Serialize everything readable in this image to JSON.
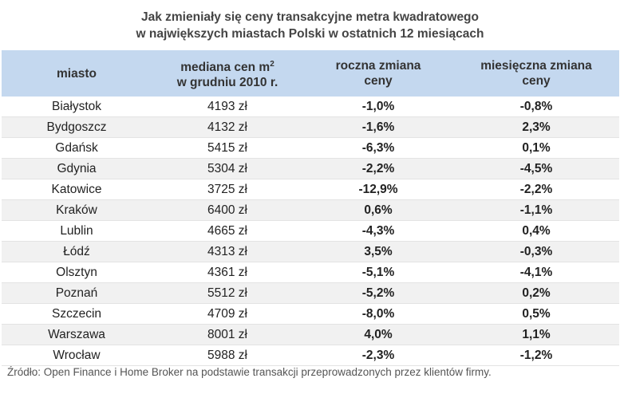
{
  "title": {
    "line1": "Jak zmieniały się ceny transakcyjne metra kwadratowego",
    "line2": "w największych miastach Polski w ostatnich 12 miesiącach"
  },
  "headers": {
    "city": "miasto",
    "median_line1": "mediana cen m",
    "median_sup": "2",
    "median_line2": "w grudniu 2010 r.",
    "annual_line1": "roczna zmiana",
    "annual_line2": "ceny",
    "monthly_line1": "miesięczna zmiana",
    "monthly_line2": "ceny"
  },
  "chart_data": {
    "type": "table",
    "columns": [
      "miasto",
      "mediana cen m2 w grudniu 2010 r.",
      "roczna zmiana ceny",
      "miesięczna zmiana ceny"
    ],
    "rows": [
      {
        "city": "Białystok",
        "median": "4193 zł",
        "annual": "-1,0%",
        "monthly": "-0,8%"
      },
      {
        "city": "Bydgoszcz",
        "median": "4132 zł",
        "annual": "-1,6%",
        "monthly": "2,3%"
      },
      {
        "city": "Gdańsk",
        "median": "5415 zł",
        "annual": "-6,3%",
        "monthly": "0,1%"
      },
      {
        "city": "Gdynia",
        "median": "5304 zł",
        "annual": "-2,2%",
        "monthly": "-4,5%"
      },
      {
        "city": "Katowice",
        "median": "3725 zł",
        "annual": "-12,9%",
        "monthly": "-2,2%"
      },
      {
        "city": "Kraków",
        "median": "6400 zł",
        "annual": "0,6%",
        "monthly": "-1,1%"
      },
      {
        "city": "Lublin",
        "median": "4665 zł",
        "annual": "-4,3%",
        "monthly": "0,4%"
      },
      {
        "city": "Łódź",
        "median": "4313 zł",
        "annual": "3,5%",
        "monthly": "-0,3%"
      },
      {
        "city": "Olsztyn",
        "median": "4361 zł",
        "annual": "-5,1%",
        "monthly": "-4,1%"
      },
      {
        "city": "Poznań",
        "median": "5512 zł",
        "annual": "-5,2%",
        "monthly": "0,2%"
      },
      {
        "city": "Szczecin",
        "median": "4709 zł",
        "annual": "-8,0%",
        "monthly": "0,5%"
      },
      {
        "city": "Warszawa",
        "median": "8001 zł",
        "annual": "4,0%",
        "monthly": "1,1%"
      },
      {
        "city": "Wrocław",
        "median": "5988 zł",
        "annual": "-2,3%",
        "monthly": "-1,2%"
      }
    ]
  },
  "source": "Źródło: Open Finance i Home Broker na podstawie transakcji przeprowadzonych przez klientów firmy.",
  "colors": {
    "header_bg": "#c4d8ef",
    "stripe_bg": "#f1f1f1"
  }
}
